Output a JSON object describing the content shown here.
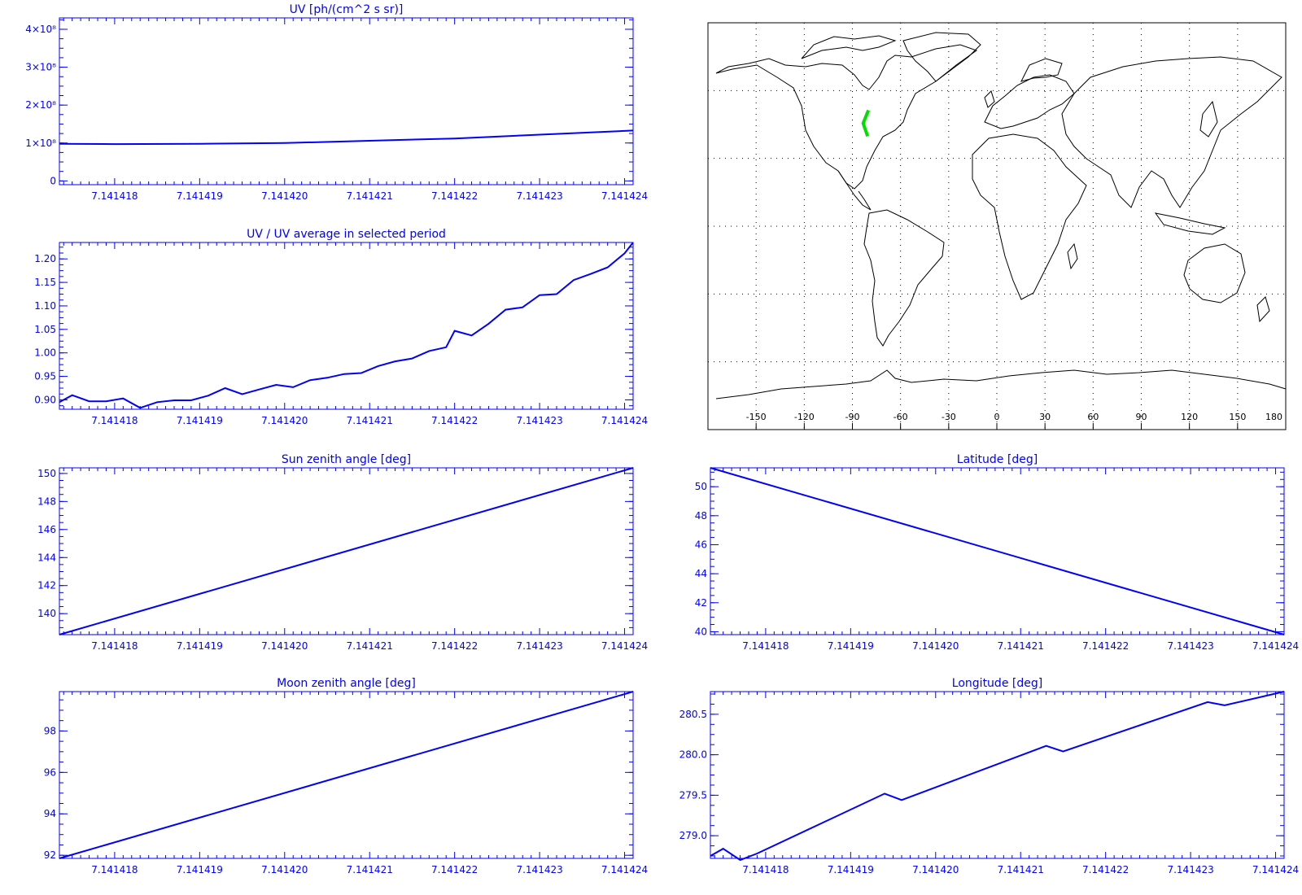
{
  "colors": {
    "axis": "#0000ff",
    "line": "#0000ff",
    "map_track": "#00e000",
    "map_frame": "#000000"
  },
  "x_ticks": [
    "7.141418",
    "7.141419",
    "7.141420",
    "7.141421",
    "7.141422",
    "7.141423",
    "7.141424"
  ],
  "chart_data": [
    {
      "type": "line",
      "title": "UV [ph/(cm^2 s sr)]",
      "xlim": [
        7.14141735,
        7.1414241
      ],
      "ylim": [
        -0.1,
        4.3
      ],
      "y_ticks": [
        "0",
        "1×10⁸",
        "2×10⁸",
        "3×10⁸",
        "4×10⁸"
      ],
      "y_tick_values": [
        0,
        1,
        2,
        3,
        4
      ],
      "x": [
        7.14141735,
        7.141418,
        7.141419,
        7.14142,
        7.141421,
        7.141422,
        7.141423,
        7.1414241
      ],
      "y": [
        0.98,
        0.97,
        0.98,
        1.0,
        1.06,
        1.12,
        1.22,
        1.33
      ]
    },
    {
      "type": "line",
      "title": "UV / UV average in selected period",
      "xlim": [
        7.14141735,
        7.1414241
      ],
      "ylim": [
        0.88,
        1.235
      ],
      "y_ticks": [
        "0.90",
        "0.95",
        "1.00",
        "1.05",
        "1.10",
        "1.15",
        "1.20"
      ],
      "y_tick_values": [
        0.9,
        0.95,
        1.0,
        1.05,
        1.1,
        1.15,
        1.2
      ],
      "x": [
        7.14141735,
        7.1414175,
        7.1414177,
        7.1414179,
        7.1414181,
        7.1414183,
        7.1414185,
        7.1414187,
        7.1414189,
        7.1414191,
        7.1414193,
        7.1414195,
        7.1414197,
        7.1414199,
        7.1414201,
        7.1414203,
        7.1414205,
        7.1414207,
        7.1414209,
        7.1414211,
        7.1414213,
        7.1414215,
        7.1414217,
        7.1414219,
        7.141422,
        7.1414222,
        7.1414224,
        7.1414226,
        7.1414228,
        7.141423,
        7.1414232,
        7.1414234,
        7.1414236,
        7.1414238,
        7.141424,
        7.1414241
      ],
      "y": [
        0.895,
        0.91,
        0.897,
        0.897,
        0.903,
        0.883,
        0.895,
        0.899,
        0.899,
        0.909,
        0.925,
        0.912,
        0.922,
        0.932,
        0.927,
        0.942,
        0.947,
        0.955,
        0.957,
        0.972,
        0.982,
        0.988,
        1.004,
        1.012,
        1.047,
        1.037,
        1.062,
        1.092,
        1.097,
        1.123,
        1.125,
        1.155,
        1.168,
        1.182,
        1.212,
        1.235
      ]
    },
    {
      "type": "line",
      "title": "Sun zenith angle [deg]",
      "xlim": [
        7.14141735,
        7.1414241
      ],
      "ylim": [
        138.5,
        150.4
      ],
      "y_ticks": [
        "140",
        "142",
        "144",
        "146",
        "148",
        "150"
      ],
      "y_tick_values": [
        140,
        142,
        144,
        146,
        148,
        150
      ],
      "x": [
        7.14141735,
        7.1414241
      ],
      "y": [
        138.5,
        150.4
      ]
    },
    {
      "type": "line",
      "title": "Latitude [deg]",
      "xlim": [
        7.14141735,
        7.1414241
      ],
      "ylim": [
        39.8,
        51.3
      ],
      "y_ticks": [
        "40",
        "42",
        "44",
        "46",
        "48",
        "50"
      ],
      "y_tick_values": [
        40,
        42,
        44,
        46,
        48,
        50
      ],
      "x": [
        7.14141735,
        7.1414241
      ],
      "y": [
        51.3,
        39.8
      ]
    },
    {
      "type": "line",
      "title": "Moon zenith angle [deg]",
      "xlim": [
        7.14141735,
        7.1414241
      ],
      "ylim": [
        91.85,
        99.9
      ],
      "y_ticks": [
        "92",
        "94",
        "96",
        "98"
      ],
      "y_tick_values": [
        92,
        94,
        96,
        98
      ],
      "x": [
        7.14141735,
        7.1414241
      ],
      "y": [
        91.85,
        99.9
      ]
    },
    {
      "type": "line",
      "title": "Longitude [deg]",
      "xlim": [
        7.14141735,
        7.1414241
      ],
      "ylim": [
        278.72,
        280.78
      ],
      "y_ticks": [
        "279.0",
        "279.5",
        "280.0",
        "280.5"
      ],
      "y_tick_values": [
        279.0,
        279.5,
        280.0,
        280.5
      ],
      "x": [
        7.14141735,
        7.1414175,
        7.1414177,
        7.1414179,
        7.1414194,
        7.1414196,
        7.1414213,
        7.1414215,
        7.1414232,
        7.1414234,
        7.1414241
      ],
      "y": [
        278.75,
        278.84,
        278.7,
        278.78,
        279.52,
        279.44,
        280.11,
        280.04,
        280.65,
        280.61,
        280.78
      ]
    }
  ],
  "map": {
    "type": "map",
    "x_ticks": [
      "-150",
      "-120",
      "-90",
      "-60",
      "-30",
      "0",
      "30",
      "60",
      "90",
      "120",
      "150",
      "180"
    ],
    "x_tick_values": [
      -150,
      -120,
      -90,
      -60,
      -30,
      0,
      30,
      60,
      90,
      120,
      150,
      180
    ],
    "lon_range": [
      -180,
      180
    ],
    "lat_range": [
      -90,
      90
    ],
    "track": {
      "lon": [
        -80.0,
        -83.3,
        -80.5
      ],
      "lat": [
        51.3,
        45.5,
        39.8
      ]
    }
  }
}
